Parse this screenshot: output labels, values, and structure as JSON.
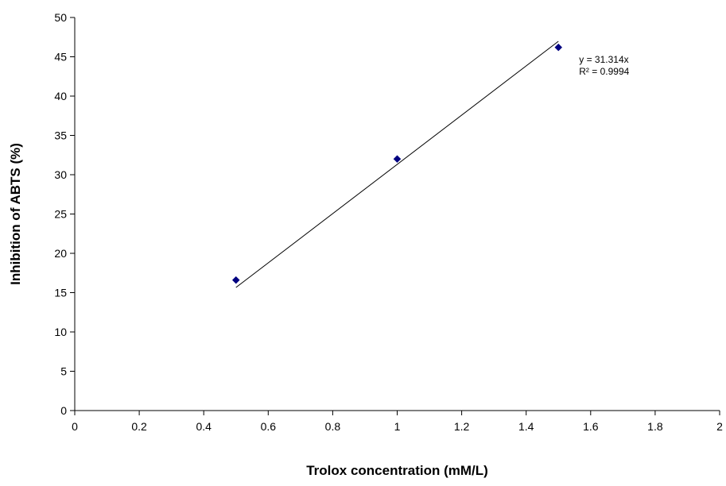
{
  "chart_data": {
    "type": "scatter",
    "title": "",
    "xlabel": "Trolox concentration (mM/L)",
    "ylabel": "Inhibition of ABTS (%)",
    "xlim": [
      0,
      2
    ],
    "ylim": [
      0,
      50
    ],
    "x_ticks": [
      0,
      0.2,
      0.4,
      0.6,
      0.8,
      1,
      1.2,
      1.4,
      1.6,
      1.8,
      2
    ],
    "y_ticks": [
      0,
      5,
      10,
      15,
      20,
      25,
      30,
      35,
      40,
      45,
      50
    ],
    "grid": false,
    "legend": "none",
    "marker": "diamond",
    "marker_color": "#000080",
    "series": [
      {
        "x": [
          0.5,
          1.0,
          1.5
        ],
        "y": [
          16.6,
          32.0,
          46.2
        ]
      }
    ],
    "trendline": {
      "type": "linear",
      "slope": 31.314,
      "intercept": 0,
      "x_range": [
        0.5,
        1.5
      ],
      "color": "#000000"
    },
    "annotations": {
      "equation": "y = 31.314x",
      "r_squared": "R² = 0.9994"
    }
  }
}
